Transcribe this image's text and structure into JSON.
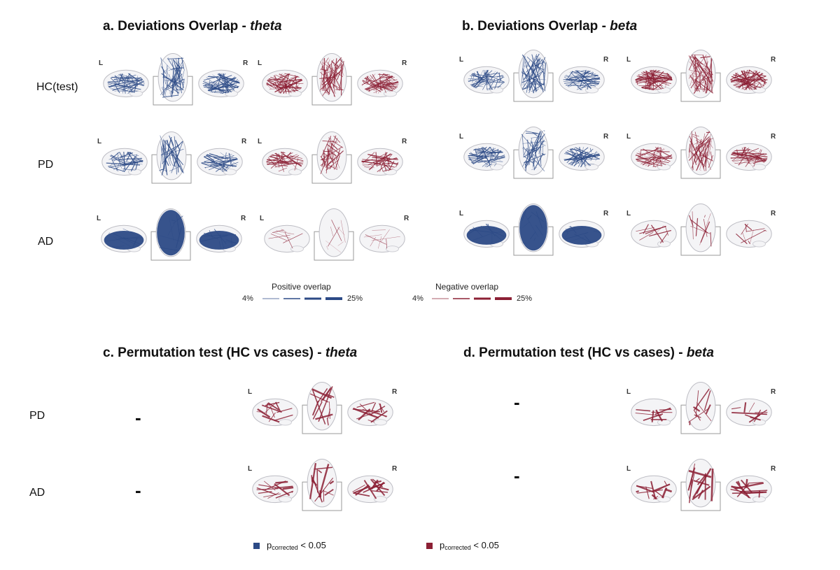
{
  "panels": {
    "a": {
      "title_prefix": "a. Deviations Overlap - ",
      "title_italic": "theta"
    },
    "b": {
      "title_prefix": "b. Deviations Overlap - ",
      "title_italic": "beta"
    },
    "c": {
      "title_prefix": "c. Permutation test (HC vs cases) - ",
      "title_italic": "theta"
    },
    "d": {
      "title_prefix": "d. Permutation test (HC vs cases) - ",
      "title_italic": "beta"
    }
  },
  "row_labels_top": [
    "HC(test)",
    "PD",
    "AD"
  ],
  "row_labels_bottom": [
    "PD",
    "AD"
  ],
  "hemisphere": {
    "left": "L",
    "right": "R"
  },
  "empty_marker": "-",
  "legend": {
    "positive": {
      "title": "Positive overlap",
      "min": "4%",
      "max": "25%",
      "color": "#2c4a86"
    },
    "negative": {
      "title": "Negative overlap",
      "min": "4%",
      "max": "25%",
      "color": "#8c2035"
    }
  },
  "p_legend": {
    "p": "p",
    "sub": "corrected",
    "threshold": "< 0.05",
    "blue": "#2c4a86",
    "red": "#8c2035"
  },
  "colors": {
    "blue": "#2c4a86",
    "red": "#8c2035"
  }
}
